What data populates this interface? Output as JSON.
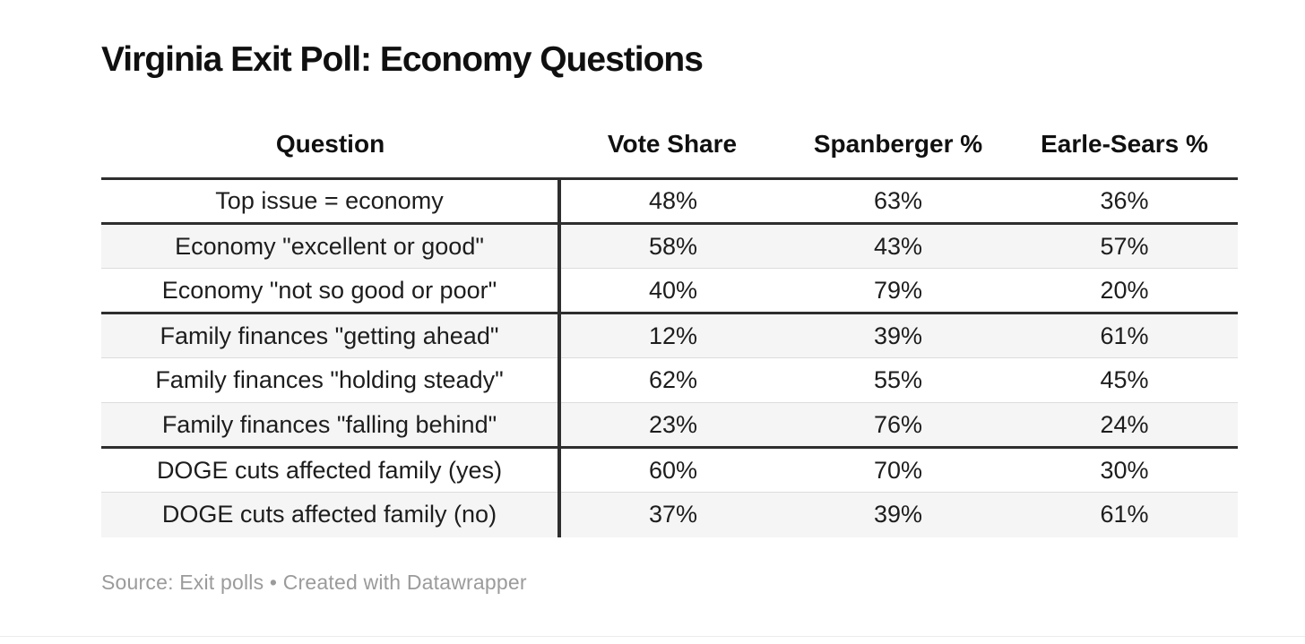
{
  "title": "Virginia Exit Poll: Economy Questions",
  "table": {
    "columns": [
      "Question",
      "Vote Share",
      "Spanberger %",
      "Earle-Sears %"
    ],
    "rows": [
      {
        "question": "Top issue = economy",
        "vote_share": "48%",
        "spanberger": "63%",
        "earle_sears": "36%",
        "thick_border_below": true
      },
      {
        "question": "Economy \"excellent or good\"",
        "vote_share": "58%",
        "spanberger": "43%",
        "earle_sears": "57%",
        "thick_border_below": false
      },
      {
        "question": "Economy \"not so good or poor\"",
        "vote_share": "40%",
        "spanberger": "79%",
        "earle_sears": "20%",
        "thick_border_below": true
      },
      {
        "question": "Family finances \"getting ahead\"",
        "vote_share": "12%",
        "spanberger": "39%",
        "earle_sears": "61%",
        "thick_border_below": false
      },
      {
        "question": "Family finances \"holding steady\"",
        "vote_share": "62%",
        "spanberger": "55%",
        "earle_sears": "45%",
        "thick_border_below": false
      },
      {
        "question": "Family finances \"falling behind\"",
        "vote_share": "23%",
        "spanberger": "76%",
        "earle_sears": "24%",
        "thick_border_below": true
      },
      {
        "question": "DOGE cuts affected family (yes)",
        "vote_share": "60%",
        "spanberger": "70%",
        "earle_sears": "30%",
        "thick_border_below": false
      },
      {
        "question": "DOGE cuts affected family (no)",
        "vote_share": "37%",
        "spanberger": "39%",
        "earle_sears": "61%",
        "thick_border_below": false
      }
    ]
  },
  "footer": {
    "source_line": "Source: Exit polls • Created with Datawrapper"
  },
  "colors": {
    "text": "#1d1d1d",
    "heading_text": "#101010",
    "dark_border": "#2e2e2e",
    "light_border": "#dcdcdc",
    "shaded_row_bg": "#f5f5f5",
    "footer_text": "#9b9b9b",
    "background": "#ffffff"
  },
  "chart_data": {
    "type": "table",
    "title": "Virginia Exit Poll: Economy Questions",
    "columns": [
      "Question",
      "Vote Share",
      "Spanberger %",
      "Earle-Sears %"
    ],
    "rows": [
      [
        "Top issue = economy",
        48,
        63,
        36
      ],
      [
        "Economy \"excellent or good\"",
        58,
        43,
        57
      ],
      [
        "Economy \"not so good or poor\"",
        40,
        79,
        20
      ],
      [
        "Family finances \"getting ahead\"",
        12,
        39,
        61
      ],
      [
        "Family finances \"holding steady\"",
        62,
        55,
        45
      ],
      [
        "Family finances \"falling behind\"",
        23,
        76,
        24
      ],
      [
        "DOGE cuts affected family (yes)",
        60,
        70,
        30
      ],
      [
        "DOGE cuts affected family (no)",
        37,
        39,
        61
      ]
    ],
    "row_groups": [
      [
        0
      ],
      [
        1,
        2
      ],
      [
        3,
        4,
        5
      ],
      [
        6,
        7
      ]
    ],
    "units": "%",
    "source_text": "Source: Exit polls • Created with Datawrapper"
  }
}
